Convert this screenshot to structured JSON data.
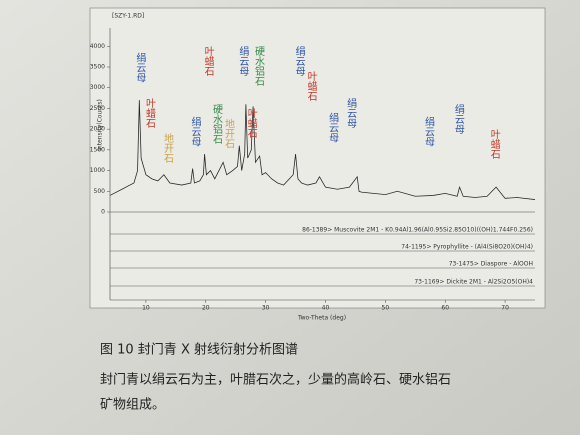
{
  "chart_data": {
    "type": "line",
    "file_label": "[SZY-1.RD]",
    "y_label": "Intensity(Counts)",
    "x_label": "Two-Theta (deg)",
    "color": "#2a2a2a",
    "x": [
      4,
      6,
      8,
      8.6,
      8.9,
      9.2,
      10,
      11,
      12,
      13,
      14,
      16,
      17.5,
      17.8,
      18.1,
      19,
      19.6,
      19.8,
      20.1,
      20.8,
      21.5,
      22.9,
      23.5,
      24.5,
      25.3,
      25.6,
      26,
      26.5,
      26.7,
      27,
      27.6,
      27.9,
      28.3,
      29,
      29.4,
      30,
      31,
      32,
      33,
      34.6,
      35,
      35.4,
      36,
      37,
      38.4,
      39,
      40,
      42,
      44,
      45.3,
      45.6,
      46,
      48,
      50,
      52,
      55,
      58,
      60,
      62,
      62.4,
      63,
      65,
      67,
      68.5,
      70,
      72,
      75
    ],
    "values": [
      400,
      550,
      700,
      1000,
      2700,
      1300,
      900,
      800,
      750,
      900,
      700,
      650,
      700,
      1050,
      700,
      750,
      900,
      1400,
      900,
      1000,
      800,
      1200,
      900,
      1000,
      1100,
      1600,
      1000,
      1400,
      2600,
      1300,
      1500,
      2550,
      1200,
      1350,
      900,
      950,
      800,
      700,
      650,
      900,
      1400,
      800,
      700,
      650,
      700,
      850,
      600,
      550,
      600,
      850,
      500,
      480,
      450,
      420,
      500,
      380,
      400,
      450,
      380,
      600,
      380,
      350,
      380,
      600,
      330,
      350,
      300
    ],
    "xlim": [
      4,
      75
    ],
    "xticks": [
      10,
      20,
      30,
      40,
      50,
      60,
      70
    ],
    "ylim": [
      0,
      4200
    ],
    "yticks": [
      0,
      500,
      1000,
      1500,
      2000,
      2500,
      3000,
      3500,
      4000
    ],
    "annotations": [
      {
        "text": "绢云母",
        "x": 9,
        "y": 3850,
        "color": "#2f55a4"
      },
      {
        "text": "叶蜡石",
        "x": 10.6,
        "y": 2750,
        "color": "#c0392b"
      },
      {
        "text": "地开石",
        "x": 13.6,
        "y": 1900,
        "color": "#c9a24a"
      },
      {
        "text": "绢云母",
        "x": 18.2,
        "y": 2300,
        "color": "#2f55a4"
      },
      {
        "text": "叶蜡石",
        "x": 20.4,
        "y": 4000,
        "color": "#c0392b"
      },
      {
        "text": "硬水铝石",
        "x": 21.8,
        "y": 2600,
        "color": "#3a8a4a"
      },
      {
        "text": "地开石",
        "x": 23.8,
        "y": 2250,
        "color": "#c9a24a"
      },
      {
        "text": "绢云母",
        "x": 26.2,
        "y": 4000,
        "color": "#2f55a4"
      },
      {
        "text": "叶蜡石",
        "x": 27.6,
        "y": 2500,
        "color": "#c0392b"
      },
      {
        "text": "硬水铝石",
        "x": 28.8,
        "y": 4000,
        "color": "#3a8a4a"
      },
      {
        "text": "绢云母",
        "x": 35.6,
        "y": 4000,
        "color": "#2f55a4"
      },
      {
        "text": "叶蜡石",
        "x": 37.6,
        "y": 3400,
        "color": "#c0392b"
      },
      {
        "text": "绢云母",
        "x": 41.2,
        "y": 2400,
        "color": "#2f55a4"
      },
      {
        "text": "绢云母",
        "x": 44.2,
        "y": 2750,
        "color": "#2f55a4"
      },
      {
        "text": "绢云母",
        "x": 57.2,
        "y": 2300,
        "color": "#2f55a4"
      },
      {
        "text": "绢云母",
        "x": 62.2,
        "y": 2600,
        "color": "#2f55a4"
      },
      {
        "text": "叶蜡石",
        "x": 68.2,
        "y": 2000,
        "color": "#c0392b"
      }
    ],
    "reference_patterns": [
      "86-1389> Muscovite 2M1 - K0.94Al1.96(Al0.95Si2.85O10)((OH)1.744F0.256)",
      "74-1195> Pyrophyllite - (Al4(Si8O20)(OH)4)",
      "73-1475> Diaspore - AlOOH",
      "73-1169> Dickite 2M1 - Al2Si2O5(OH)4"
    ]
  },
  "caption": "图 10  封门青 X 射线衍射分析图谱",
  "body_lines": [
    "封门青以绢云石为主，叶腊石次之，少量的高岭石、硬水铝石",
    "矿物组成。"
  ]
}
